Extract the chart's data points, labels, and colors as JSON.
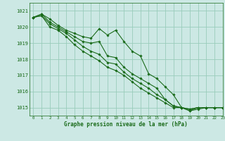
{
  "title": "Graphe pression niveau de la mer (hPa)",
  "bg_color": "#cce8e4",
  "grid_color": "#99ccbb",
  "line_color": "#1a6b1a",
  "marker_color": "#1a6b1a",
  "xlim": [
    -0.5,
    23
  ],
  "ylim": [
    1014.5,
    1021.5
  ],
  "yticks": [
    1015,
    1016,
    1017,
    1018,
    1019,
    1020,
    1021
  ],
  "xticks": [
    0,
    1,
    2,
    3,
    4,
    5,
    6,
    7,
    8,
    9,
    10,
    11,
    12,
    13,
    14,
    15,
    16,
    17,
    18,
    19,
    20,
    21,
    22,
    23
  ],
  "lines": [
    {
      "x": [
        0,
        1,
        2,
        3,
        4,
        5,
        6,
        7,
        8,
        9,
        10,
        11,
        12,
        13,
        14,
        15,
        16,
        17,
        18,
        19,
        20,
        21,
        22,
        23
      ],
      "y": [
        1020.6,
        1020.8,
        1020.5,
        1020.1,
        1019.8,
        1019.6,
        1019.4,
        1019.3,
        1019.9,
        1019.5,
        1019.8,
        1019.1,
        1018.5,
        1018.2,
        1017.1,
        1016.8,
        1016.3,
        1015.8,
        1015.0,
        1014.8,
        1015.0,
        1015.0,
        1015.0,
        1015.0
      ]
    },
    {
      "x": [
        0,
        1,
        2,
        3,
        4,
        5,
        6,
        7,
        8,
        9,
        10,
        11,
        12,
        13,
        14,
        15,
        16,
        17,
        18,
        19,
        20,
        21,
        22,
        23
      ],
      "y": [
        1020.6,
        1020.8,
        1020.3,
        1020.0,
        1019.7,
        1019.4,
        1019.1,
        1019.0,
        1019.1,
        1018.2,
        1018.1,
        1017.5,
        1017.1,
        1016.8,
        1016.5,
        1016.2,
        1015.5,
        1015.1,
        1015.0,
        1014.9,
        1015.0,
        1015.0,
        1015.0,
        1015.0
      ]
    },
    {
      "x": [
        0,
        1,
        2,
        3,
        4,
        5,
        6,
        7,
        8,
        9,
        10,
        11,
        12,
        13,
        14,
        15,
        16,
        17,
        18,
        19,
        20,
        21,
        22,
        23
      ],
      "y": [
        1020.6,
        1020.7,
        1020.2,
        1019.9,
        1019.6,
        1019.2,
        1018.8,
        1018.5,
        1018.3,
        1017.8,
        1017.7,
        1017.2,
        1016.8,
        1016.5,
        1016.2,
        1015.8,
        1015.5,
        1015.1,
        1015.0,
        1014.8,
        1014.9,
        1015.0,
        1015.0,
        1015.0
      ]
    },
    {
      "x": [
        0,
        1,
        2,
        3,
        4,
        5,
        6,
        7,
        8,
        9,
        10,
        11,
        12,
        13,
        14,
        15,
        16,
        17,
        18,
        19,
        20,
        21,
        22,
        23
      ],
      "y": [
        1020.6,
        1020.7,
        1020.0,
        1019.8,
        1019.4,
        1018.9,
        1018.5,
        1018.2,
        1017.9,
        1017.5,
        1017.3,
        1017.0,
        1016.6,
        1016.2,
        1015.9,
        1015.6,
        1015.3,
        1015.0,
        1015.0,
        1014.9,
        1015.0,
        1015.0,
        1015.0,
        1015.0
      ]
    }
  ]
}
